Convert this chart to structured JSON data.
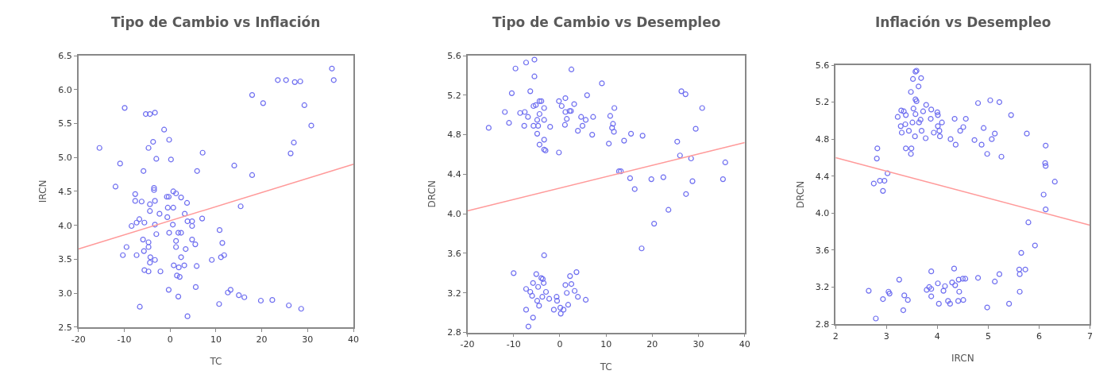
{
  "chart_data": [
    {
      "type": "scatter",
      "title": "Tipo de Cambio vs Inflación",
      "xlabel": "TC",
      "ylabel": "IRCN",
      "xlim": [
        -20,
        40
      ],
      "ylim": [
        2.5,
        6.5
      ],
      "xticks": [
        -20,
        -10,
        0,
        10,
        20,
        30,
        40
      ],
      "yticks": [
        2.5,
        {
          "value": 3,
          "label": "3.0"
        },
        3.5,
        {
          "value": 4,
          "label": "4.0"
        },
        4.5,
        {
          "value": 5,
          "label": "5.0"
        },
        5.5,
        {
          "value": 6,
          "label": "6.0"
        },
        6.5
      ],
      "series": [
        {
          "marker": "circle",
          "color": "#6f6ff0",
          "x": [
            -15.4,
            -9.9,
            -10.9,
            -11.9,
            -9.5,
            -10.3,
            -7.6,
            -7.6,
            -6.2,
            -5.8,
            -8.4,
            -7.3,
            -6.7,
            -5.6,
            -5.9,
            -4.7,
            -5.7,
            -4.7,
            -7.3,
            -6.6,
            -5.6,
            -4.7,
            -4.4,
            -4.3,
            -5.3,
            -4.4,
            -3.3,
            -4.7,
            -3.7,
            -3.0,
            -4.4,
            -4.4,
            -3.5,
            -3.5,
            -3.3,
            -3.3,
            -3.0,
            -3.3,
            -2.1,
            -2.3,
            -1.3,
            -0.2,
            0.2,
            -0.7,
            -0.3,
            -0.6,
            -0.5,
            0.7,
            0.7,
            1.3,
            2.4,
            3.7,
            3.2,
            0.6,
            -0.2,
            1.8,
            2.4,
            1.3,
            1.3,
            3.4,
            3.8,
            4.8,
            4.8,
            2.4,
            0.8,
            1.9,
            3.1,
            1.5,
            2.1,
            -0.3,
            1.8,
            3.8,
            4.8,
            5.5,
            5.8,
            5.6,
            5.9,
            7.1,
            7.0,
            9.1,
            10.8,
            11.4,
            11.1,
            11.8,
            10.7,
            12.6,
            13.2,
            14.0,
            15.4,
            15.0,
            16.2,
            17.9,
            17.9,
            20.3,
            19.8,
            22.3,
            23.5,
            25.3,
            27.2,
            28.4,
            26.3,
            27.0,
            29.3,
            30.8,
            25.9,
            28.6,
            35.3,
            35.7
          ],
          "values": [
            5.14,
            5.73,
            4.91,
            4.57,
            3.68,
            3.56,
            4.46,
            4.36,
            4.35,
            4.8,
            3.99,
            4.04,
            4.09,
            4.04,
            3.79,
            3.75,
            3.62,
            3.68,
            3.56,
            2.8,
            3.34,
            3.32,
            3.45,
            3.53,
            5.64,
            5.64,
            5.66,
            5.14,
            5.23,
            4.98,
            4.31,
            4.21,
            4.55,
            4.52,
            4.36,
            4.01,
            3.87,
            3.49,
            3.32,
            4.17,
            5.41,
            5.26,
            4.97,
            4.42,
            4.42,
            4.12,
            4.26,
            4.26,
            4.5,
            4.47,
            4.41,
            4.33,
            4.17,
            4.01,
            3.89,
            3.89,
            3.89,
            3.77,
            3.68,
            3.65,
            4.06,
            4.06,
            3.99,
            3.53,
            3.41,
            3.38,
            3.41,
            3.26,
            3.24,
            3.05,
            2.95,
            2.66,
            3.79,
            3.72,
            3.4,
            3.09,
            4.8,
            5.07,
            4.1,
            3.49,
            3.93,
            3.74,
            3.53,
            3.56,
            2.84,
            3.01,
            3.05,
            4.88,
            4.28,
            2.97,
            2.94,
            5.92,
            4.74,
            5.8,
            2.89,
            2.9,
            6.14,
            6.14,
            6.11,
            6.12,
            5.06,
            5.22,
            5.77,
            5.47,
            2.82,
            2.77,
            6.31,
            6.14
          ]
        },
        {
          "type": "line",
          "color": "#ff9a9a",
          "x": [
            -20,
            40
          ],
          "values": [
            3.65,
            4.9
          ]
        }
      ]
    },
    {
      "type": "scatter",
      "title": "Tipo de Cambio vs Desempleo",
      "xlabel": "TC",
      "ylabel": "DRCN",
      "xlim": [
        -20,
        40
      ],
      "ylim": [
        2.8,
        5.6
      ],
      "xticks": [
        -20,
        -10,
        0,
        10,
        20,
        30,
        40
      ],
      "yticks": [
        2.8,
        3.2,
        3.6,
        {
          "value": 4,
          "label": "4.0"
        },
        4.4,
        4.8,
        5.2,
        5.6
      ],
      "series": [
        {
          "marker": "circle",
          "color": "#6f6ff0",
          "x": [
            -15.4,
            -11.9,
            -11.0,
            -10.4,
            -9.6,
            -7.3,
            -5.5,
            -5.5,
            -6.4,
            -8.6,
            -7.6,
            -6.9,
            -7.7,
            -5.7,
            -5.2,
            -4.4,
            -4.0,
            -4.4,
            -3.4,
            -4.9,
            -3.4,
            -5.7,
            -4.7,
            -4.9,
            -4.4,
            -3.4,
            -3.4,
            -3.1,
            -2.1,
            -0.2,
            1.2,
            0.4,
            1.2,
            2.1,
            2.4,
            1.5,
            1.1,
            -0.2,
            2.5,
            3.1,
            3.9,
            4.6,
            4.9,
            5.6,
            7.2,
            7.0,
            5.9,
            9.1,
            10.6,
            10.9,
            11.3,
            11.5,
            11.7,
            11.8,
            12.8,
            13.2,
            13.9,
            15.2,
            15.4,
            16.2,
            17.9,
            17.7,
            19.8,
            20.4,
            22.4,
            23.5,
            25.4,
            26.0,
            26.3,
            27.2,
            27.3,
            28.4,
            28.7,
            29.4,
            30.8,
            35.3,
            35.8,
            -3.4,
            -10.0,
            -5.1,
            -4.0,
            -3.7,
            -5.8,
            -4.7,
            -3.5,
            -7.3,
            -6.4,
            -6.0,
            -3.0,
            -3.8,
            -4.9,
            -4.5,
            -2.3,
            -0.7,
            -0.6,
            -1.3,
            0.1,
            0.2,
            0.8,
            1.5,
            1.2,
            2.2,
            2.5,
            3.6,
            3.2,
            3.9,
            1.8,
            5.6,
            -7.3,
            -5.8,
            -6.8
          ],
          "values": [
            4.87,
            5.03,
            4.92,
            5.22,
            5.47,
            5.53,
            5.56,
            5.39,
            5.24,
            5.02,
            5.03,
            4.98,
            4.89,
            5.09,
            5.1,
            5.14,
            5.14,
            5.01,
            5.07,
            4.95,
            4.95,
            4.89,
            4.89,
            4.81,
            4.7,
            4.75,
            4.65,
            4.64,
            4.88,
            5.14,
            5.17,
            5.09,
            5.03,
            5.04,
            5.04,
            4.96,
            4.9,
            4.62,
            5.46,
            5.11,
            4.84,
            4.98,
            4.89,
            4.95,
            4.98,
            4.8,
            5.2,
            5.32,
            4.71,
            4.99,
            4.87,
            4.91,
            4.83,
            5.07,
            4.43,
            4.43,
            4.74,
            4.36,
            4.81,
            4.25,
            4.79,
            3.65,
            4.35,
            3.9,
            4.37,
            4.04,
            4.73,
            4.59,
            5.24,
            5.21,
            4.2,
            4.56,
            4.33,
            4.86,
            5.07,
            4.35,
            4.52,
            3.58,
            3.4,
            3.39,
            3.35,
            3.34,
            3.3,
            3.26,
            3.3,
            3.24,
            3.21,
            3.17,
            3.21,
            3.16,
            3.12,
            3.07,
            3.14,
            3.16,
            3.12,
            3.03,
            3.05,
            2.99,
            3.03,
            3.2,
            3.28,
            3.37,
            3.29,
            3.41,
            3.22,
            3.16,
            3.08,
            3.13,
            3.03,
            2.95,
            2.86
          ]
        },
        {
          "type": "line",
          "color": "#ff9a9a",
          "x": [
            -20,
            40
          ],
          "values": [
            4.03,
            4.72
          ]
        }
      ]
    },
    {
      "type": "scatter",
      "title": "Inflación vs Desempleo",
      "xlabel": "IRCN",
      "ylabel": "DRCN",
      "xlim": [
        2,
        7
      ],
      "ylim": [
        2.8,
        5.6
      ],
      "xticks": [
        2,
        3,
        4,
        5,
        6,
        7
      ],
      "yticks": [
        2.8,
        3.2,
        3.6,
        {
          "value": 4,
          "label": "4.0"
        },
        4.4,
        4.8,
        5.2,
        5.6
      ],
      "series": [
        {
          "marker": "circle",
          "color": "#6f6ff0",
          "x": [
            3.59,
            3.57,
            3.52,
            3.68,
            3.63,
            3.48,
            3.57,
            3.59,
            3.78,
            3.88,
            3.72,
            3.53,
            3.34,
            3.29,
            3.38,
            3.22,
            3.57,
            4.0,
            4.01,
            3.67,
            3.64,
            3.87,
            3.51,
            4.09,
            4.01,
            3.28,
            3.37,
            3.44,
            3.3,
            3.69,
            3.56,
            3.77,
            3.93,
            4.04,
            4.05,
            3.38,
            3.49,
            3.48,
            4.34,
            4.56,
            4.51,
            4.45,
            4.26,
            4.36,
            4.8,
            5.04,
            5.22,
            5.45,
            4.91,
            5.13,
            4.73,
            4.87,
            5.07,
            4.98,
            5.26,
            5.76,
            6.13,
            6.12,
            6.13,
            6.31,
            6.09,
            6.13,
            5.79,
            5.92,
            5.65,
            5.61,
            5.73,
            5.62,
            5.62,
            5.41,
            5.22,
            5.13,
            4.8,
            4.98,
            2.82,
            2.81,
            2.75,
            2.87,
            2.96,
            3.02,
            2.93,
            2.65,
            2.79,
            2.93,
            3.04,
            3.06,
            3.25,
            3.35,
            3.42,
            3.33,
            3.88,
            3.79,
            3.84,
            3.88,
            3.88,
            4.01,
            4.03,
            4.12,
            4.15,
            4.21,
            4.25,
            4.29,
            4.33,
            4.35,
            4.42,
            4.5,
            4.43,
            4.41,
            4.51,
            4.55
          ],
          "values": [
            5.54,
            5.53,
            5.45,
            5.46,
            5.37,
            5.31,
            5.23,
            5.21,
            5.17,
            5.12,
            5.1,
            5.13,
            5.1,
            5.11,
            5.06,
            5.04,
            5.07,
            5.09,
            5.06,
            5.01,
            4.98,
            5.02,
            4.98,
            4.98,
            4.94,
            4.94,
            4.96,
            4.89,
            4.87,
            4.89,
            4.83,
            4.81,
            4.87,
            4.89,
            4.83,
            4.7,
            4.7,
            4.64,
            5.02,
            5.02,
            4.93,
            4.89,
            4.8,
            4.74,
            5.19,
            5.22,
            5.2,
            5.06,
            4.92,
            4.86,
            4.79,
            4.74,
            4.8,
            4.64,
            4.61,
            4.86,
            4.73,
            4.54,
            4.51,
            4.34,
            4.2,
            4.04,
            3.9,
            3.65,
            3.57,
            3.39,
            3.39,
            3.34,
            3.15,
            3.02,
            3.34,
            3.26,
            3.3,
            2.98,
            4.7,
            4.59,
            4.32,
            4.35,
            4.35,
            4.43,
            4.24,
            3.16,
            2.86,
            3.07,
            3.15,
            3.13,
            3.28,
            3.11,
            3.06,
            2.95,
            3.37,
            3.17,
            3.2,
            3.18,
            3.1,
            3.24,
            3.02,
            3.16,
            3.21,
            3.05,
            3.02,
            3.25,
            3.4,
            3.22,
            3.28,
            3.29,
            3.15,
            3.05,
            3.06,
            3.29
          ]
        },
        {
          "type": "line",
          "color": "#ff9a9a",
          "x": [
            2,
            7
          ],
          "values": [
            4.6,
            3.87
          ]
        }
      ]
    }
  ]
}
